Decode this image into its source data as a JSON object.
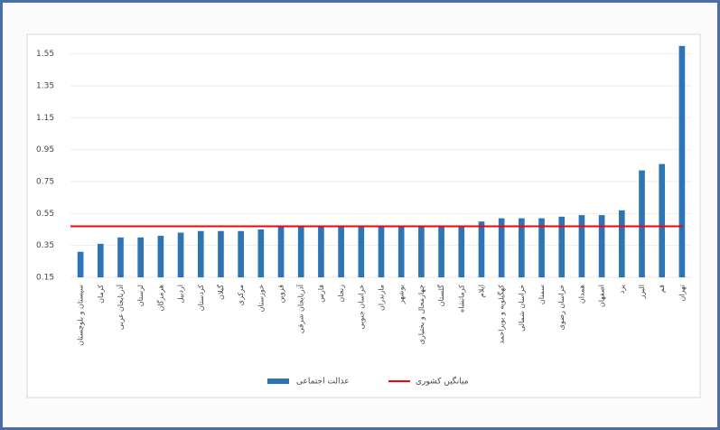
{
  "chart_data": {
    "type": "bar",
    "categories": [
      "سیستان و بلوچستان",
      "کرمان",
      "آذربایجان غربی",
      "لرستان",
      "هرمزگان",
      "اردبیل",
      "کردستان",
      "گیلان",
      "مرکزی",
      "خوزستان",
      "قزوین",
      "آذربایجان شرقی",
      "فارس",
      "زنجان",
      "خراسان جنوبی",
      "مازندران",
      "بوشهر",
      "چهارمحال و بختیاری",
      "گلستان",
      "کرمانشاه",
      "ایلام",
      "کهگیلویه و بویراحمد",
      "خراسان شمالی",
      "سمنان",
      "خراسان رضوی",
      "همدان",
      "اصفهان",
      "یزد",
      "البرز",
      "قم",
      "تهران"
    ],
    "series": [
      {
        "name": "عدالت اجتماعی",
        "color": "#2e75b6",
        "values": [
          0.31,
          0.36,
          0.4,
          0.4,
          0.41,
          0.43,
          0.44,
          0.44,
          0.44,
          0.45,
          0.47,
          0.47,
          0.47,
          0.47,
          0.47,
          0.47,
          0.47,
          0.47,
          0.47,
          0.47,
          0.5,
          0.52,
          0.52,
          0.52,
          0.53,
          0.54,
          0.54,
          0.57,
          0.82,
          0.86,
          1.6
        ]
      }
    ],
    "average": {
      "name": "میانگین کشوری",
      "color": "#ff0000",
      "value": 0.47
    },
    "ylim": [
      0.15,
      1.65
    ],
    "yticks": [
      0.15,
      0.35,
      0.55,
      0.75,
      0.95,
      1.15,
      1.35,
      1.55
    ],
    "grid": true
  }
}
